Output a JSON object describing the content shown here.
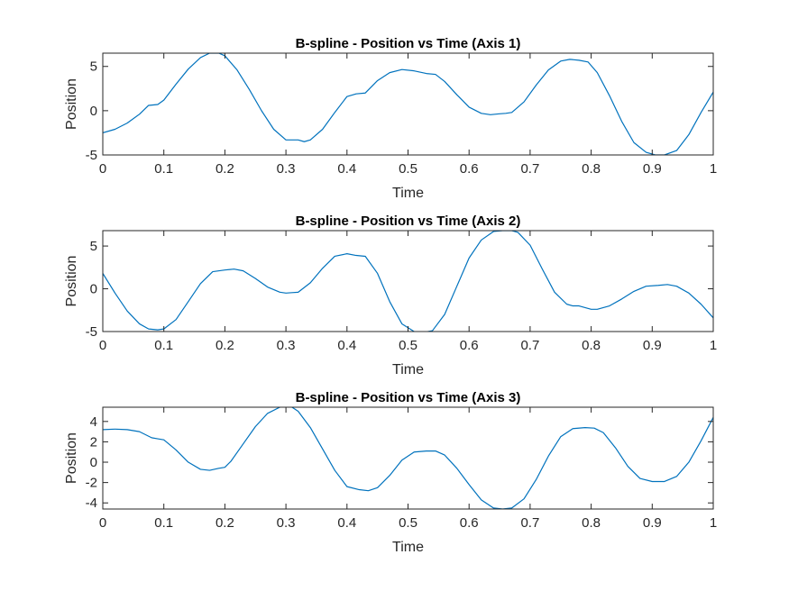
{
  "chart_data": [
    {
      "type": "line",
      "title": "B-spline - Position vs Time (Axis 1)",
      "xlabel": "Time",
      "ylabel": "Position",
      "xlim": [
        0,
        1
      ],
      "ylim": [
        -5,
        6.5
      ],
      "xticks": [
        0,
        0.1,
        0.2,
        0.3,
        0.4,
        0.5,
        0.6,
        0.7,
        0.8,
        0.9,
        1
      ],
      "xtick_labels": [
        "0",
        "0.1",
        "0.2",
        "0.3",
        "0.4",
        "0.5",
        "0.6",
        "0.7",
        "0.8",
        "0.9",
        "1"
      ],
      "yticks": [
        -5,
        0,
        5
      ],
      "ytick_labels": [
        "-5",
        "0",
        "5"
      ],
      "grid": false,
      "series": [
        {
          "color": "#0072bd",
          "x": [
            0,
            0.02,
            0.04,
            0.06,
            0.075,
            0.09,
            0.1,
            0.12,
            0.14,
            0.16,
            0.175,
            0.19,
            0.2,
            0.22,
            0.24,
            0.26,
            0.28,
            0.3,
            0.31,
            0.32,
            0.33,
            0.34,
            0.36,
            0.38,
            0.4,
            0.415,
            0.43,
            0.45,
            0.47,
            0.49,
            0.51,
            0.53,
            0.545,
            0.56,
            0.58,
            0.6,
            0.62,
            0.635,
            0.65,
            0.66,
            0.67,
            0.69,
            0.71,
            0.73,
            0.75,
            0.765,
            0.78,
            0.795,
            0.81,
            0.83,
            0.85,
            0.87,
            0.89,
            0.905,
            0.92,
            0.94,
            0.96,
            0.98,
            1.0
          ],
          "y": [
            -2.5,
            -2.1,
            -1.4,
            -0.4,
            0.6,
            0.7,
            1.2,
            3.0,
            4.7,
            6.0,
            6.5,
            6.5,
            6.2,
            4.6,
            2.4,
            0.0,
            -2.1,
            -3.3,
            -3.3,
            -3.3,
            -3.5,
            -3.3,
            -2.1,
            -0.2,
            1.6,
            1.9,
            2.0,
            3.4,
            4.3,
            4.65,
            4.5,
            4.2,
            4.1,
            3.3,
            1.8,
            0.4,
            -0.3,
            -0.45,
            -0.35,
            -0.3,
            -0.2,
            1.0,
            2.9,
            4.6,
            5.6,
            5.8,
            5.7,
            5.5,
            4.3,
            1.7,
            -1.2,
            -3.6,
            -4.7,
            -5.0,
            -5.0,
            -4.5,
            -2.7,
            -0.2,
            2.1
          ]
        }
      ]
    },
    {
      "type": "line",
      "title": "B-spline - Position vs Time (Axis 2)",
      "xlabel": "Time",
      "ylabel": "Position",
      "xlim": [
        0,
        1
      ],
      "ylim": [
        -5,
        6.8
      ],
      "xticks": [
        0,
        0.1,
        0.2,
        0.3,
        0.4,
        0.5,
        0.6,
        0.7,
        0.8,
        0.9,
        1
      ],
      "xtick_labels": [
        "0",
        "0.1",
        "0.2",
        "0.3",
        "0.4",
        "0.5",
        "0.6",
        "0.7",
        "0.8",
        "0.9",
        "1"
      ],
      "yticks": [
        -5,
        0,
        5
      ],
      "ytick_labels": [
        "-5",
        "0",
        "5"
      ],
      "grid": false,
      "series": [
        {
          "color": "#0072bd",
          "x": [
            0,
            0.02,
            0.04,
            0.06,
            0.075,
            0.09,
            0.1,
            0.12,
            0.14,
            0.16,
            0.18,
            0.2,
            0.215,
            0.23,
            0.25,
            0.27,
            0.29,
            0.3,
            0.31,
            0.32,
            0.34,
            0.36,
            0.38,
            0.4,
            0.415,
            0.43,
            0.45,
            0.47,
            0.49,
            0.51,
            0.525,
            0.54,
            0.56,
            0.58,
            0.6,
            0.62,
            0.64,
            0.655,
            0.67,
            0.68,
            0.7,
            0.72,
            0.74,
            0.76,
            0.77,
            0.78,
            0.79,
            0.8,
            0.81,
            0.83,
            0.85,
            0.87,
            0.89,
            0.91,
            0.925,
            0.94,
            0.96,
            0.98,
            1.0
          ],
          "y": [
            1.8,
            -0.5,
            -2.6,
            -4.1,
            -4.7,
            -4.8,
            -4.7,
            -3.6,
            -1.5,
            0.6,
            2.0,
            2.2,
            2.3,
            2.1,
            1.2,
            0.2,
            -0.4,
            -0.5,
            -0.45,
            -0.4,
            0.7,
            2.4,
            3.8,
            4.1,
            3.9,
            3.8,
            1.8,
            -1.5,
            -4.1,
            -5.0,
            -5.1,
            -4.9,
            -3.0,
            0.3,
            3.6,
            5.7,
            6.7,
            6.8,
            6.8,
            6.6,
            5.1,
            2.3,
            -0.4,
            -1.8,
            -2.0,
            -2.0,
            -2.2,
            -2.4,
            -2.4,
            -2.0,
            -1.2,
            -0.3,
            0.3,
            0.4,
            0.5,
            0.3,
            -0.5,
            -1.8,
            -3.4
          ]
        }
      ]
    },
    {
      "type": "line",
      "title": "B-spline - Position vs Time (Axis 3)",
      "xlabel": "Time",
      "ylabel": "Position",
      "xlim": [
        0,
        1
      ],
      "ylim": [
        -4.6,
        5.4
      ],
      "xticks": [
        0,
        0.1,
        0.2,
        0.3,
        0.4,
        0.5,
        0.6,
        0.7,
        0.8,
        0.9,
        1
      ],
      "xtick_labels": [
        "0",
        "0.1",
        "0.2",
        "0.3",
        "0.4",
        "0.5",
        "0.6",
        "0.7",
        "0.8",
        "0.9",
        "1"
      ],
      "yticks": [
        -4,
        -2,
        0,
        2,
        4
      ],
      "ytick_labels": [
        "-4",
        "-2",
        "0",
        "2",
        "4"
      ],
      "grid": false,
      "series": [
        {
          "color": "#0072bd",
          "x": [
            0,
            0.02,
            0.04,
            0.06,
            0.08,
            0.09,
            0.1,
            0.12,
            0.14,
            0.16,
            0.175,
            0.19,
            0.2,
            0.21,
            0.23,
            0.25,
            0.27,
            0.29,
            0.3,
            0.31,
            0.32,
            0.34,
            0.36,
            0.38,
            0.4,
            0.42,
            0.435,
            0.45,
            0.47,
            0.49,
            0.51,
            0.53,
            0.545,
            0.56,
            0.58,
            0.6,
            0.62,
            0.64,
            0.655,
            0.67,
            0.69,
            0.71,
            0.73,
            0.75,
            0.77,
            0.79,
            0.805,
            0.82,
            0.84,
            0.86,
            0.88,
            0.9,
            0.92,
            0.94,
            0.96,
            0.98,
            1.0
          ],
          "y": [
            3.2,
            3.25,
            3.2,
            3.0,
            2.4,
            2.3,
            2.2,
            1.2,
            0.0,
            -0.7,
            -0.8,
            -0.6,
            -0.5,
            0.1,
            1.8,
            3.5,
            4.8,
            5.4,
            5.5,
            5.4,
            5.0,
            3.4,
            1.3,
            -0.8,
            -2.4,
            -2.7,
            -2.8,
            -2.5,
            -1.3,
            0.2,
            1.0,
            1.1,
            1.1,
            0.7,
            -0.6,
            -2.2,
            -3.7,
            -4.5,
            -4.6,
            -4.5,
            -3.6,
            -1.7,
            0.6,
            2.5,
            3.3,
            3.4,
            3.35,
            2.9,
            1.4,
            -0.4,
            -1.6,
            -1.9,
            -1.9,
            -1.4,
            0.0,
            2.1,
            4.4
          ]
        }
      ]
    }
  ]
}
